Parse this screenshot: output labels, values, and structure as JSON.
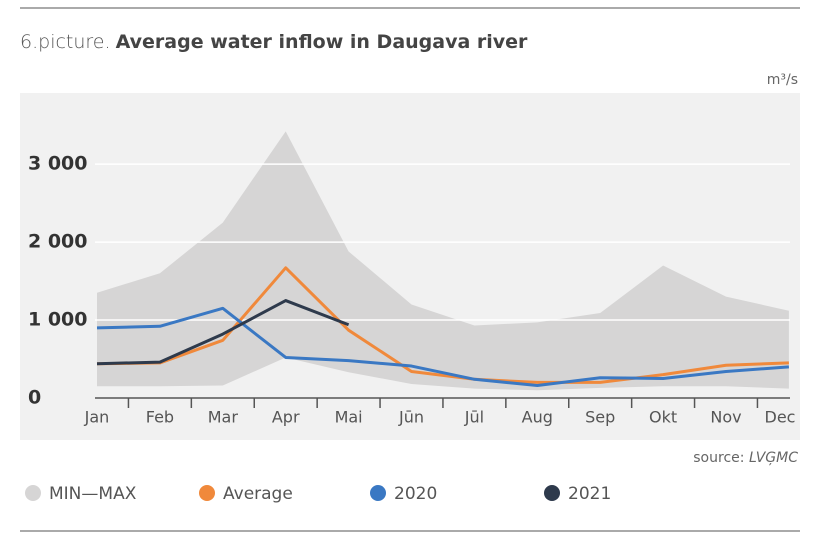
{
  "chart_data": {
    "type": "line",
    "title_prefix": "6.picture.",
    "title": "Average water inflow in Daugava river",
    "unit": "m³/s",
    "source": "source:",
    "source_org": "LVĢMC",
    "categories": [
      "Jan",
      "Feb",
      "Mar",
      "Apr",
      "Mai",
      "Jūn",
      "Jūl",
      "Aug",
      "Sep",
      "Okt",
      "Nov",
      "Dec"
    ],
    "range": {
      "name": "MIN—MAX",
      "color": "#d6d5d5",
      "max": [
        1350,
        1600,
        2250,
        3420,
        1880,
        1200,
        930,
        970,
        1090,
        1700,
        1300,
        1120
      ],
      "min": [
        150,
        150,
        160,
        520,
        330,
        180,
        120,
        100,
        130,
        150,
        150,
        120
      ]
    },
    "series": [
      {
        "name": "Average",
        "color": "#f0893b",
        "values": [
          440,
          450,
          740,
          1670,
          870,
          340,
          240,
          200,
          200,
          300,
          420,
          450
        ]
      },
      {
        "name": "2020",
        "color": "#3a78c3",
        "values": [
          900,
          920,
          1150,
          520,
          480,
          410,
          240,
          160,
          260,
          250,
          340,
          400
        ]
      },
      {
        "name": "2021",
        "color": "#2e3a4c",
        "values": [
          440,
          460,
          820,
          1250,
          940,
          null,
          null,
          null,
          null,
          null,
          null,
          null
        ]
      }
    ],
    "ylim": [
      0,
      3900
    ],
    "yticks": [
      0,
      {
        "value": 1000,
        "label": "1 000"
      },
      {
        "value": 2000,
        "label": "2 000"
      },
      {
        "value": 3000,
        "label": "3 000"
      }
    ],
    "grid": true
  }
}
